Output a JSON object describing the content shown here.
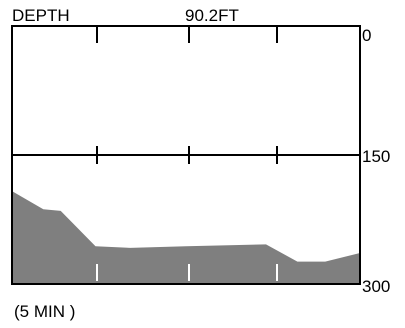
{
  "header": {
    "title": "DEPTH",
    "reading": "90.2FT"
  },
  "scale": {
    "top": "0",
    "middle": "150",
    "bottom": "300",
    "max": 300
  },
  "footer": {
    "time_scale": "(5 MIN )"
  },
  "colors": {
    "frame": "#000000",
    "fill": "#7f7f7f",
    "background": "#ffffff",
    "bottom_ticks": "#ffffff"
  },
  "chart_data": {
    "type": "area",
    "title": "",
    "xlabel": "(5 MIN )",
    "ylabel": "",
    "ylim": [
      0,
      300
    ],
    "y_inverted": true,
    "x": [
      0,
      0.09,
      0.14,
      0.24,
      0.34,
      0.5,
      0.73,
      0.82,
      0.9,
      1.0
    ],
    "values": [
      192,
      213,
      215,
      256,
      258,
      256,
      254,
      274,
      274,
      264
    ]
  }
}
